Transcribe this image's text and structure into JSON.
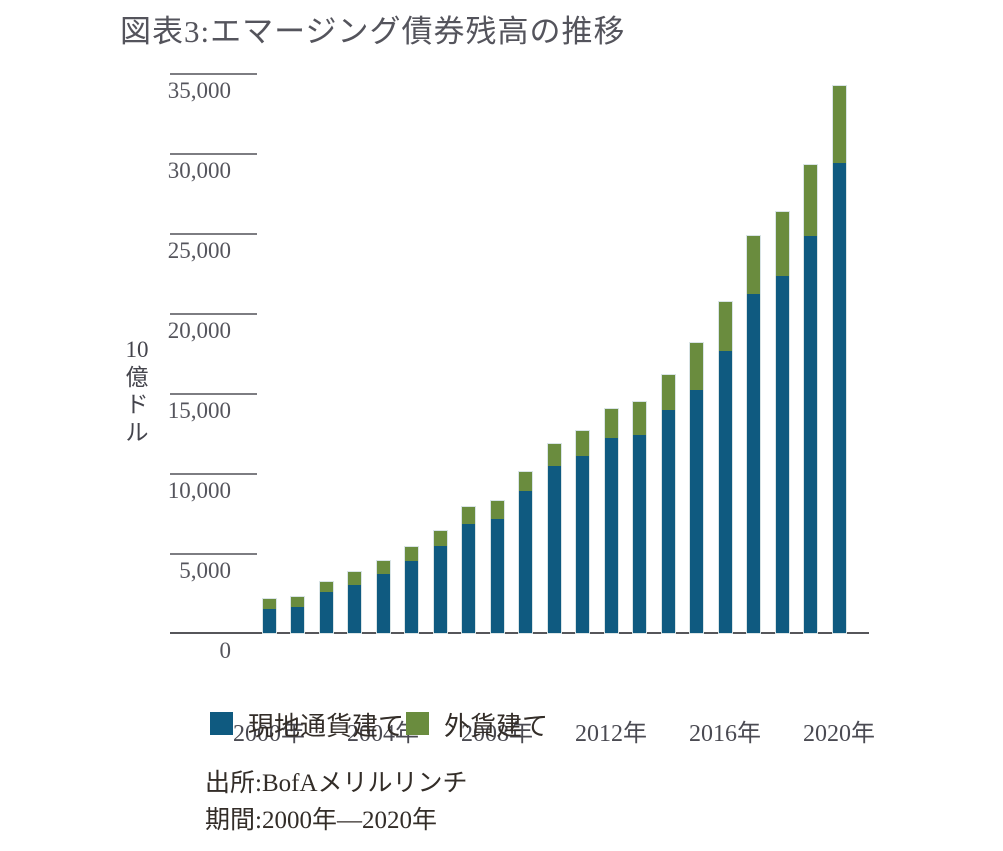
{
  "page": {
    "title": "図表3:エマージング債券残高の推移"
  },
  "chart_data": {
    "type": "bar",
    "stacked": true,
    "title": "図表3:エマージング債券残高の推移",
    "unit_label": "10億ドル",
    "ylabel_chars": [
      "10",
      "億",
      "ド",
      "ル"
    ],
    "categories": [
      "2000",
      "2001",
      "2002",
      "2003",
      "2004",
      "2005",
      "2006",
      "2007",
      "2008",
      "2009",
      "2010",
      "2011",
      "2012",
      "2013",
      "2014",
      "2015",
      "2016",
      "2017",
      "2018",
      "2019",
      "2020"
    ],
    "x_axis": {
      "tick_labels": [
        "2000年",
        "2004年",
        "2008年",
        "2012年",
        "2016年",
        "2020年"
      ],
      "tick_indices": [
        0,
        4,
        8,
        12,
        16,
        20
      ]
    },
    "y_axis": {
      "ticks": [
        0,
        5000,
        10000,
        15000,
        20000,
        25000,
        30000,
        35000
      ],
      "tick_labels": [
        "0",
        "5,000",
        "10,000",
        "15,000",
        "20,000",
        "25,000",
        "30,000",
        "35,000"
      ],
      "max": 35900,
      "grid": false
    },
    "series": [
      {
        "name": "現地通貨建て",
        "color": "#0f5a80",
        "values": [
          1500,
          1600,
          2550,
          3000,
          3700,
          4500,
          5450,
          6800,
          7100,
          8900,
          10450,
          11100,
          12200,
          12400,
          13950,
          15200,
          17650,
          21200,
          22350,
          24800,
          29400
        ]
      },
      {
        "name": "外貨建て",
        "color": "#6a8c3e",
        "values": [
          600,
          620,
          650,
          800,
          800,
          900,
          950,
          1080,
          1100,
          1200,
          1380,
          1550,
          1820,
          2050,
          2200,
          2950,
          3050,
          3650,
          4000,
          4450,
          4800
        ]
      }
    ],
    "legend_position": "bottom-left"
  },
  "source": {
    "line1": "出所:BofAメリルリンチ",
    "line2": "期間:2000年―2020年"
  },
  "colors": {
    "axis_line": "#56565a",
    "tick_line": "#7d7d82",
    "bar_outline": "#d9e4e6"
  }
}
